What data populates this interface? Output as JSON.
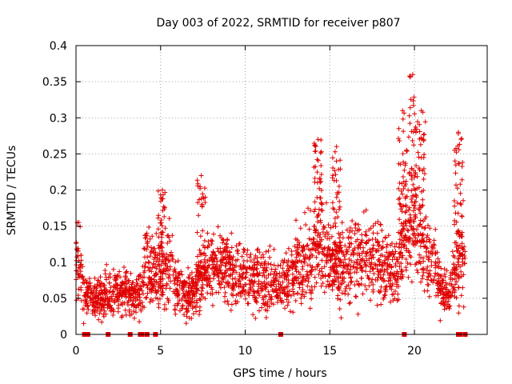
{
  "chart_data": {
    "type": "scatter",
    "title": "Day 003 of 2022, SRMTID for receiver p807",
    "xlabel": "GPS time / hours",
    "ylabel": "SRMTID / TECUs",
    "xlim": [
      0,
      24.3
    ],
    "ylim": [
      0,
      0.4
    ],
    "x_ticks": [
      0,
      5,
      10,
      15,
      20
    ],
    "x_tick_labels": [
      "0",
      "5",
      "10",
      "15",
      "20"
    ],
    "y_ticks": [
      0,
      0.05,
      0.1,
      0.15,
      0.2,
      0.25,
      0.3,
      0.35,
      0.4
    ],
    "y_tick_labels": [
      "0",
      "0.05",
      "0.1",
      "0.15",
      "0.2",
      "0.25",
      "0.3",
      "0.35",
      "0.4"
    ],
    "grid": true,
    "marker": "plus",
    "color": "#e00000",
    "series": [
      {
        "name": "SRMTID",
        "trend": {
          "x": [
            0,
            0.3,
            0.5,
            1.0,
            2.0,
            3.0,
            3.5,
            3.8,
            4.2,
            5.0,
            5.5,
            6.0,
            6.5,
            7.0,
            7.5,
            8.0,
            8.5,
            9.0,
            10.0,
            11.0,
            12.0,
            12.5,
            13.0,
            14.0,
            14.5,
            15.0,
            15.5,
            16.0,
            17.0,
            18.0,
            18.5,
            19.0,
            19.5,
            20.0,
            20.5,
            21.0,
            21.5,
            22.0,
            22.5,
            23.0
          ],
          "y": [
            0.11,
            0.09,
            0.05,
            0.05,
            0.055,
            0.06,
            0.05,
            0.06,
            0.1,
            0.08,
            0.1,
            0.07,
            0.05,
            0.06,
            0.08,
            0.09,
            0.1,
            0.09,
            0.08,
            0.075,
            0.07,
            0.075,
            0.09,
            0.11,
            0.13,
            0.1,
            0.09,
            0.1,
            0.11,
            0.1,
            0.09,
            0.08,
            0.14,
            0.16,
            0.12,
            0.1,
            0.07,
            0.05,
            0.1,
            0.12
          ]
        },
        "bursts": [
          {
            "x": 14.3,
            "y_max": 0.27
          },
          {
            "x": 15.4,
            "y_max": 0.26
          },
          {
            "x": 19.3,
            "y_max": 0.31
          },
          {
            "x": 19.9,
            "y_max": 0.36
          },
          {
            "x": 20.4,
            "y_max": 0.31
          },
          {
            "x": 22.6,
            "y_max": 0.28
          },
          {
            "x": 7.4,
            "y_max": 0.22
          },
          {
            "x": 5.1,
            "y_max": 0.2
          }
        ],
        "zero_values_x": [
          0.5,
          0.7,
          1.9,
          3.2,
          3.8,
          3.9,
          4.2,
          4.7,
          12.1,
          19.4,
          22.6,
          22.7,
          23.0
        ]
      }
    ]
  }
}
